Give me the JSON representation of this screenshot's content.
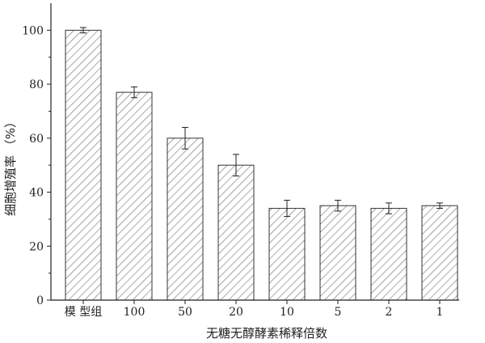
{
  "chart_data": {
    "type": "bar",
    "xlabel": "无糖无醇酵素稀释倍数",
    "ylabel": "细胞增殖率 （%）",
    "categories": [
      "模 型组",
      "100",
      "50",
      "20",
      "10",
      "5",
      "2",
      "1"
    ],
    "values": [
      100,
      77,
      60,
      50,
      34,
      35,
      34,
      35
    ],
    "errors": [
      1,
      2,
      4,
      4,
      3,
      2,
      2,
      1
    ],
    "ylim": [
      0,
      110
    ],
    "yticks": [
      0,
      20,
      40,
      60,
      80,
      100
    ],
    "bar_fill": "hatched",
    "bar_stroke": "#333333",
    "grid": false
  }
}
